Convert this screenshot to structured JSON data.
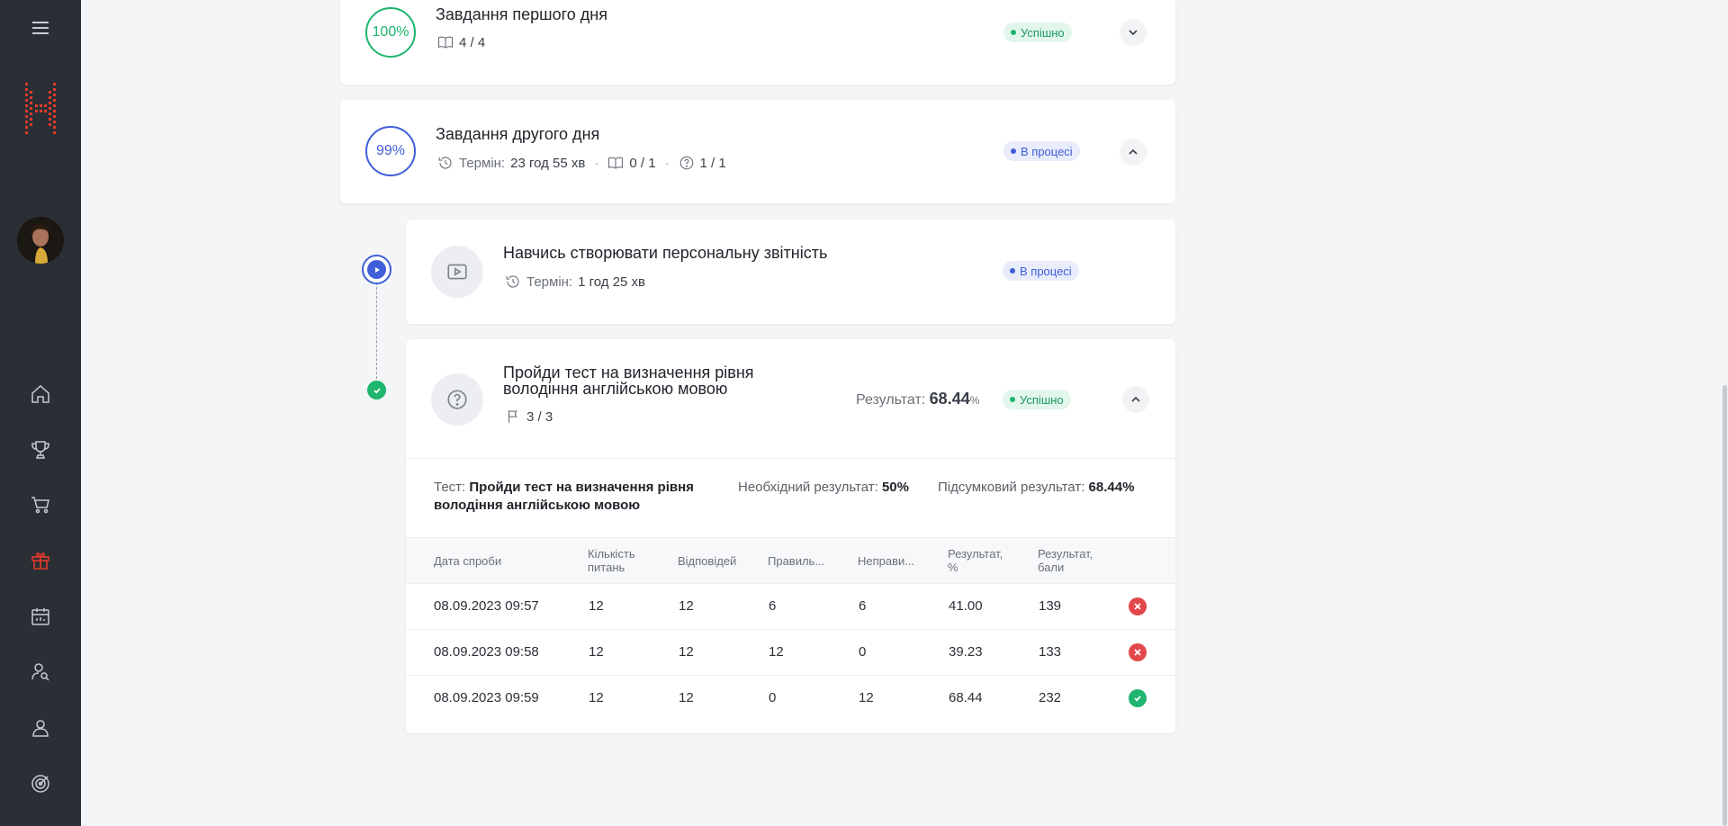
{
  "tasks": {
    "day1": {
      "percent": "100%",
      "title": "Завдання першого дня",
      "lessons": "4 / 4",
      "status": "Успішно"
    },
    "day2": {
      "percent": "99%",
      "title": "Завдання другого дня",
      "deadline_label": "Термін:",
      "deadline_value": "23 год 55 хв",
      "lessons": "0 / 1",
      "tests": "1 / 1",
      "status": "В процесі"
    }
  },
  "subtasks": {
    "video": {
      "title": "Навчись створювати персональну звітність",
      "deadline_label": "Термін:",
      "deadline_value": "1 год 25 хв",
      "status": "В процесі"
    },
    "test": {
      "title_line1": "Пройди тест на визначення рівня",
      "title_line2": "володіння англійською мовою",
      "attempts": "3 / 3",
      "result_label": "Результат:",
      "result_value": "68.44",
      "result_unit": "%",
      "status": "Успішно"
    }
  },
  "test_info": {
    "test_label": "Тест:",
    "test_name_line1": "Пройди тест на визначення рівня",
    "test_name_line2": "володіння англійською мовою",
    "required_label": "Необхідний результат:",
    "required_value": "50%",
    "final_label": "Підсумковий результат:",
    "final_value": "68.44%"
  },
  "table": {
    "headers": {
      "date": "Дата спроби",
      "questions_1": "Кількість",
      "questions_2": "питань",
      "answers": "Відповідей",
      "correct": "Правиль...",
      "incorrect": "Неправи...",
      "result_pct_1": "Результат,",
      "result_pct_2": "%",
      "result_pts_1": "Результат,",
      "result_pts_2": "бали"
    },
    "rows": [
      {
        "date": "08.09.2023 09:57",
        "questions": "12",
        "answers": "12",
        "correct": "6",
        "incorrect": "6",
        "result_pct": "41.00",
        "result_pts": "139",
        "passed": false
      },
      {
        "date": "08.09.2023 09:58",
        "questions": "12",
        "answers": "12",
        "correct": "12",
        "incorrect": "0",
        "result_pct": "39.23",
        "result_pts": "133",
        "passed": false
      },
      {
        "date": "08.09.2023 09:59",
        "questions": "12",
        "answers": "12",
        "correct": "0",
        "incorrect": "12",
        "result_pct": "68.44",
        "result_pts": "232",
        "passed": true
      }
    ]
  },
  "sidebar": {
    "icons": [
      "menu-icon",
      "home-icon",
      "trophy-icon",
      "cart-icon",
      "gift-icon",
      "calendar-icon",
      "user-search-icon",
      "user-icon",
      "target-icon"
    ],
    "active": "gift-icon"
  },
  "colors": {
    "sidebar_bg": "#2a2f35",
    "accent_red": "#e53a2b",
    "success": "#1fb56f",
    "progress": "#3f5ed8"
  }
}
